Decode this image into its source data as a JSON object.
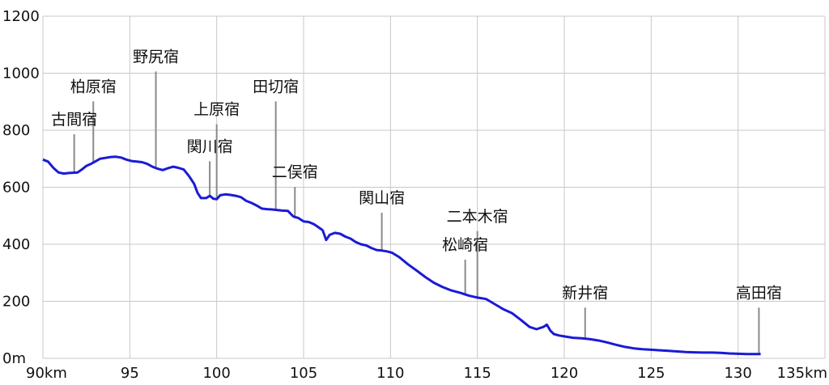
{
  "chart_data": {
    "type": "line",
    "title": "",
    "xlabel": "",
    "ylabel": "",
    "xlim": [
      90,
      135
    ],
    "ylim": [
      0,
      1200
    ],
    "grid": true,
    "colors": {
      "line": "#1a1ad6",
      "grid": "#c8c8c8",
      "leader": "#8a8a8a"
    },
    "x_ticks": [
      {
        "v": 90,
        "label": "90km"
      },
      {
        "v": 95,
        "label": "95"
      },
      {
        "v": 100,
        "label": "100"
      },
      {
        "v": 105,
        "label": "105"
      },
      {
        "v": 110,
        "label": "110"
      },
      {
        "v": 115,
        "label": "115"
      },
      {
        "v": 120,
        "label": "120"
      },
      {
        "v": 125,
        "label": "125"
      },
      {
        "v": 130,
        "label": "130"
      },
      {
        "v": 135,
        "label": "135km"
      }
    ],
    "y_ticks": [
      {
        "v": 0,
        "label": "0m"
      },
      {
        "v": 200,
        "label": "200"
      },
      {
        "v": 400,
        "label": "400"
      },
      {
        "v": 600,
        "label": "600"
      },
      {
        "v": 800,
        "label": "800"
      },
      {
        "v": 1000,
        "label": "1000"
      },
      {
        "v": 1200,
        "label": "1200"
      }
    ],
    "series": [
      {
        "x": [
          90.0,
          90.3,
          90.6,
          90.9,
          91.2,
          91.5,
          91.8,
          92.0,
          92.3,
          92.5,
          92.8,
          93.0,
          93.3,
          93.6,
          93.9,
          94.2,
          94.5,
          94.8,
          95.1,
          95.4,
          95.7,
          96.0,
          96.3,
          96.6,
          96.9,
          97.2,
          97.5,
          97.8,
          98.1,
          98.4,
          98.7,
          98.9,
          99.1,
          99.4,
          99.6,
          99.8,
          100.0,
          100.2,
          100.5,
          100.8,
          101.1,
          101.4,
          101.7,
          102.0,
          102.3,
          102.6,
          102.9,
          103.2,
          103.5,
          103.8,
          104.1,
          104.4,
          104.7,
          105.0,
          105.3,
          105.6,
          105.9,
          106.1,
          106.3,
          106.5,
          106.8,
          107.1,
          107.4,
          107.7,
          108.0,
          108.3,
          108.6,
          108.9,
          109.2,
          109.5,
          109.8,
          110.1,
          110.5,
          111.0,
          111.5,
          112.0,
          112.5,
          113.0,
          113.5,
          114.0,
          114.5,
          115.0,
          115.5,
          116.0,
          116.5,
          117.0,
          117.5,
          118.0,
          118.4,
          118.8,
          119.0,
          119.2,
          119.4,
          119.7,
          120.0,
          120.5,
          121.0,
          121.5,
          122.0,
          122.5,
          123.0,
          123.5,
          124.0,
          124.5,
          125.0,
          125.5,
          126.0,
          126.5,
          127.0,
          127.5,
          128.0,
          128.5,
          129.0,
          129.5,
          130.0,
          130.5,
          131.0,
          131.3
        ],
        "y": [
          697,
          690,
          668,
          652,
          648,
          650,
          651,
          652,
          665,
          675,
          683,
          690,
          700,
          703,
          706,
          707,
          704,
          697,
          692,
          690,
          688,
          682,
          672,
          665,
          660,
          667,
          672,
          668,
          662,
          640,
          612,
          580,
          562,
          562,
          570,
          560,
          558,
          572,
          575,
          573,
          570,
          565,
          552,
          545,
          536,
          525,
          523,
          522,
          520,
          518,
          517,
          498,
          492,
          480,
          478,
          470,
          458,
          449,
          415,
          433,
          440,
          437,
          427,
          420,
          408,
          400,
          396,
          387,
          380,
          378,
          375,
          370,
          355,
          330,
          308,
          285,
          265,
          250,
          238,
          230,
          220,
          213,
          208,
          190,
          172,
          158,
          135,
          110,
          102,
          110,
          118,
          97,
          85,
          80,
          77,
          72,
          70,
          67,
          62,
          55,
          47,
          40,
          35,
          32,
          30,
          28,
          26,
          24,
          22,
          21,
          20,
          20,
          19,
          17,
          16,
          15,
          15,
          15
        ]
      }
    ],
    "stations": [
      {
        "name": "古間宿",
        "x": 91.8,
        "y": 651,
        "label_y": 820
      },
      {
        "name": "柏原宿",
        "x": 92.9,
        "y": 688,
        "label_y": 935
      },
      {
        "name": "野尻宿",
        "x": 96.5,
        "y": 670,
        "label_y": 1040
      },
      {
        "name": "上原宿",
        "x": 100.0,
        "y": 560,
        "label_y": 855
      },
      {
        "name": "関川宿",
        "x": 99.6,
        "y": 565,
        "label_y": 725
      },
      {
        "name": "田切宿",
        "x": 103.4,
        "y": 520,
        "label_y": 935
      },
      {
        "name": "二俣宿",
        "x": 104.5,
        "y": 490,
        "label_y": 635
      },
      {
        "name": "関山宿",
        "x": 109.5,
        "y": 378,
        "label_y": 545
      },
      {
        "name": "二本木宿",
        "x": 115.0,
        "y": 208,
        "label_y": 480
      },
      {
        "name": "松崎宿",
        "x": 114.3,
        "y": 222,
        "label_y": 380
      },
      {
        "name": "新井宿",
        "x": 121.2,
        "y": 67,
        "label_y": 212
      },
      {
        "name": "高田宿",
        "x": 131.2,
        "y": 15,
        "label_y": 212
      }
    ]
  }
}
